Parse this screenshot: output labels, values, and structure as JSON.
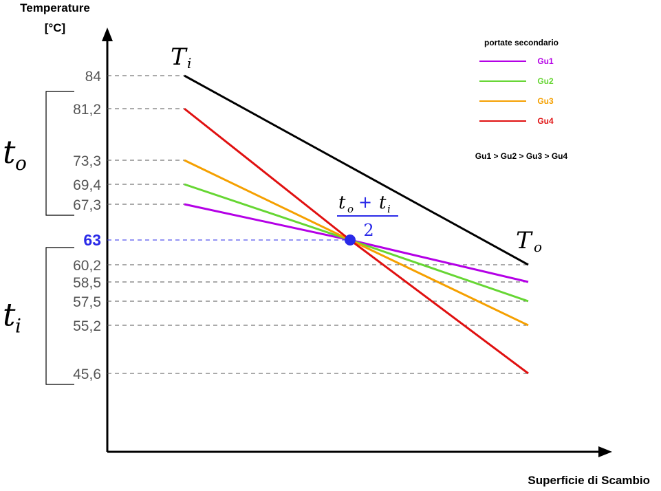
{
  "chart_data": {
    "type": "line",
    "ylabel_line1": "Temperature",
    "ylabel_line2": "[°C]",
    "xlabel": "Superficie di Scambio",
    "y_ticks": [
      {
        "value": 84,
        "label": "84"
      },
      {
        "value": 81.2,
        "label": "81,2"
      },
      {
        "value": 73.3,
        "label": "73,3"
      },
      {
        "value": 69.4,
        "label": "69,4"
      },
      {
        "value": 67.3,
        "label": "67,3"
      },
      {
        "value": 63,
        "label": "63",
        "highlight": true
      },
      {
        "value": 60.2,
        "label": "60,2"
      },
      {
        "value": 58.5,
        "label": "58,5"
      },
      {
        "value": 57.5,
        "label": "57,5"
      },
      {
        "value": 55.2,
        "label": "55,2"
      },
      {
        "value": 45.6,
        "label": "45,6"
      }
    ],
    "primary": {
      "start": 84,
      "end": 60.2,
      "label_start": "T",
      "label_start_sub": "i",
      "label_end": "T",
      "label_end_sub": "o",
      "color": "#000000"
    },
    "series": [
      {
        "name": "Gu1",
        "start": 67.3,
        "end": 58.5,
        "color": "#b400e6"
      },
      {
        "name": "Gu2",
        "start": 69.4,
        "end": 57.5,
        "color": "#66d633"
      },
      {
        "name": "Gu3",
        "start": 73.3,
        "end": 55.2,
        "color": "#f5a000"
      },
      {
        "name": "Gu4",
        "start": 81.2,
        "end": 45.6,
        "color": "#e01010"
      }
    ],
    "mean_point": {
      "value": 63,
      "numerator_a": "t",
      "numerator_a_sub": "o",
      "plus": "+",
      "numerator_b": "t",
      "numerator_b_sub": "i",
      "denominator": "2",
      "color": "#2a2ae8"
    },
    "brackets": [
      {
        "symbol": "t",
        "sub": "o",
        "from": 81.2,
        "to": 67.3
      },
      {
        "symbol": "t",
        "sub": "i",
        "from": 60.2,
        "to": 45.6
      }
    ],
    "legend": {
      "title": "portate secondario",
      "order": "Gu1 > Gu2 > Gu3 > Gu4"
    }
  }
}
